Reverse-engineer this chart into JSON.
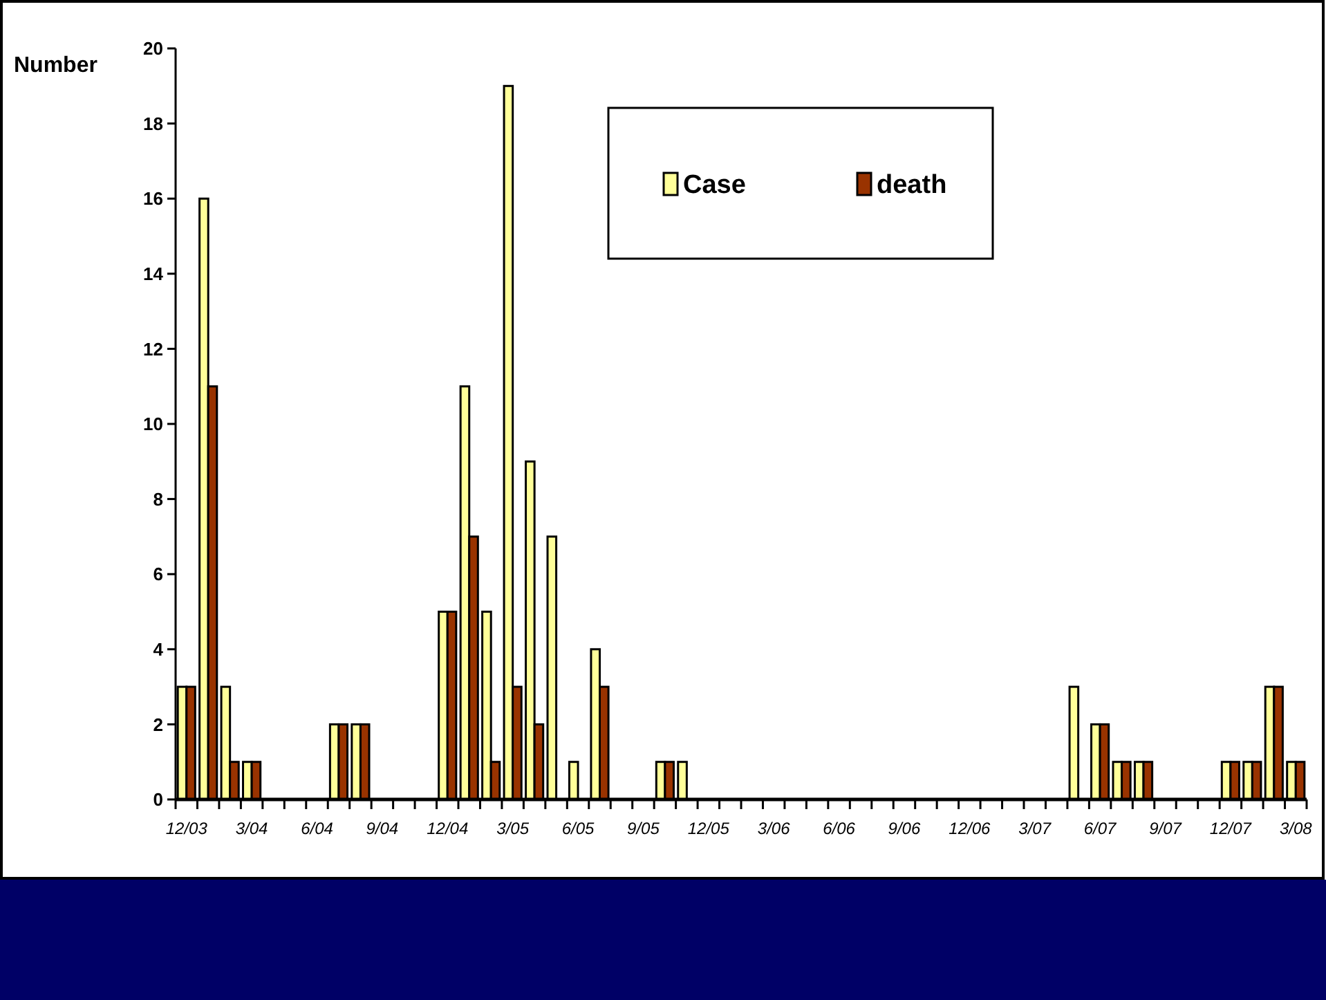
{
  "chart_data": {
    "type": "bar",
    "ylabel": "Number",
    "categories": [
      "12/03",
      null,
      null,
      "3/04",
      null,
      null,
      "6/04",
      null,
      null,
      "9/04",
      null,
      null,
      "12/04",
      null,
      null,
      "3/05",
      null,
      null,
      "6/05",
      null,
      null,
      "9/05",
      null,
      null,
      "12/05",
      null,
      null,
      "3/06",
      null,
      null,
      "6/06",
      null,
      null,
      "9/06",
      null,
      null,
      "12/06",
      null,
      null,
      "3/07",
      null,
      null,
      "6/07",
      null,
      null,
      "9/07",
      null,
      null,
      "12/07",
      null,
      null,
      "3/08"
    ],
    "series": [
      {
        "name": "Case",
        "color": "#ffff99",
        "values": [
          3,
          16,
          3,
          1,
          0,
          0,
          0,
          2,
          2,
          0,
          0,
          0,
          5,
          11,
          5,
          19,
          9,
          7,
          1,
          4,
          0,
          0,
          1,
          1,
          0,
          0,
          0,
          0,
          0,
          0,
          0,
          0,
          0,
          0,
          0,
          0,
          0,
          0,
          0,
          0,
          0,
          3,
          2,
          1,
          1,
          0,
          0,
          0,
          1,
          1,
          3,
          1
        ]
      },
      {
        "name": "death",
        "color": "#993300",
        "values": [
          3,
          11,
          1,
          1,
          0,
          0,
          0,
          2,
          2,
          0,
          0,
          0,
          5,
          7,
          1,
          3,
          2,
          0,
          0,
          3,
          0,
          0,
          1,
          0,
          0,
          0,
          0,
          0,
          0,
          0,
          0,
          0,
          0,
          0,
          0,
          0,
          0,
          0,
          0,
          0,
          0,
          0,
          2,
          1,
          1,
          0,
          0,
          0,
          1,
          1,
          3,
          1
        ]
      }
    ],
    "ylim": [
      0,
      20
    ],
    "yticks": [
      0,
      2,
      4,
      6,
      8,
      10,
      12,
      14,
      16,
      18,
      20
    ],
    "grid": false,
    "legend": "top right"
  }
}
